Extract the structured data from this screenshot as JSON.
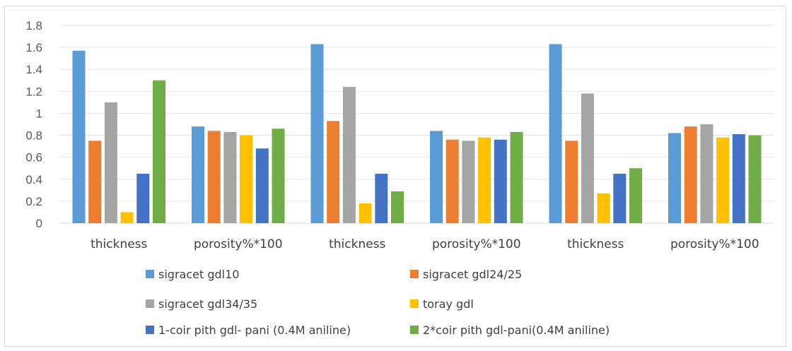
{
  "chart_data": {
    "type": "bar",
    "title": "",
    "xlabel": "",
    "ylabel": "",
    "ylim": [
      0,
      1.8
    ],
    "yticks": [
      "0",
      "0.2",
      "0.4",
      "0.6",
      "0.8",
      "1",
      "1.2",
      "1.4",
      "1.6",
      "1.8"
    ],
    "grid": true,
    "legend_position": "bottom",
    "categories": [
      "thickness",
      "porosity%*100",
      "thickness",
      "porosity%*100",
      "thickness",
      "porosity%*100"
    ],
    "series": [
      {
        "name": "sigracet gdl10",
        "color": "#5b9bd5",
        "values": [
          1.57,
          0.88,
          1.63,
          0.84,
          1.63,
          0.82
        ]
      },
      {
        "name": "sigracet gdl24/25",
        "color": "#ed7d31",
        "values": [
          0.75,
          0.84,
          0.93,
          0.76,
          0.75,
          0.88
        ]
      },
      {
        "name": "sigracet gdl34/35",
        "color": "#a5a5a5",
        "values": [
          1.1,
          0.83,
          1.24,
          0.75,
          1.18,
          0.9
        ]
      },
      {
        "name": "toray gdl",
        "color": "#ffc000",
        "values": [
          0.1,
          0.8,
          0.18,
          0.78,
          0.27,
          0.78
        ]
      },
      {
        "name": "1-coir pith gdl-  pani (0.4M aniline)",
        "color": "#4472c4",
        "values": [
          0.45,
          0.68,
          0.45,
          0.76,
          0.45,
          0.81
        ]
      },
      {
        "name": "2*coir pith gdl-pani(0.4M aniline)",
        "color": "#70ad47",
        "values": [
          1.3,
          0.86,
          0.29,
          0.83,
          0.5,
          0.8
        ]
      }
    ]
  }
}
